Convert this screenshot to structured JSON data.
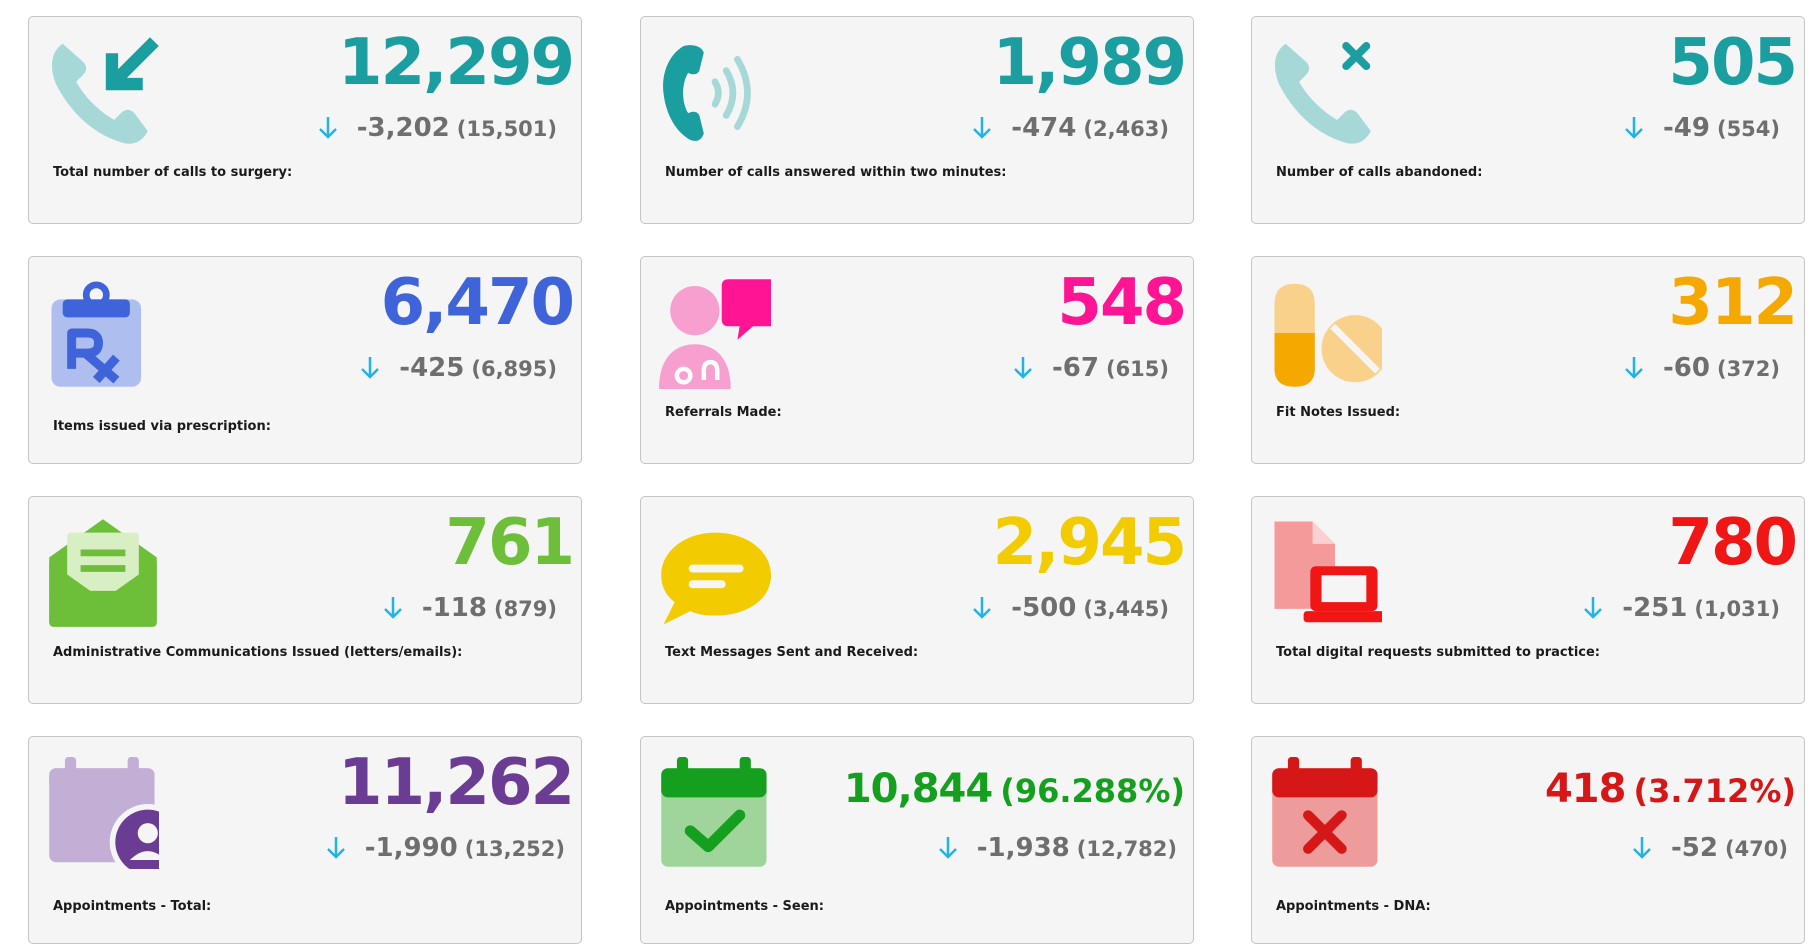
{
  "cards": [
    {
      "value": "12,299",
      "delta": "-3,202",
      "previous": "(15,501)",
      "label": "Total number of calls to surgery:",
      "color": "#1a9e9f"
    },
    {
      "value": "1,989",
      "delta": "-474",
      "previous": "(2,463)",
      "label": "Number of calls answered within two minutes:",
      "color": "#1a9e9f"
    },
    {
      "value": "505",
      "delta": "-49",
      "previous": "(554)",
      "label": "Number of calls abandoned:",
      "color": "#1a9e9f"
    },
    {
      "value": "6,470",
      "delta": "-425",
      "previous": "(6,895)",
      "label": "Items issued via prescription:",
      "color": "#3f63d8"
    },
    {
      "value": "548",
      "delta": "-67",
      "previous": "(615)",
      "label": "Referrals Made:",
      "color": "#ff1493"
    },
    {
      "value": "312",
      "delta": "-60",
      "previous": "(372)",
      "label": "Fit Notes Issued:",
      "color": "#f5a800"
    },
    {
      "value": "761",
      "delta": "-118",
      "previous": "(879)",
      "label": "Administrative Communications Issued (letters/emails):",
      "color": "#6dbf3a"
    },
    {
      "value": "2,945",
      "delta": "-500",
      "previous": "(3,445)",
      "label": "Text Messages Sent and Received:",
      "color": "#f2cc00"
    },
    {
      "value": "780",
      "delta": "-251",
      "previous": "(1,031)",
      "label": "Total digital requests submitted to practice:",
      "color": "#f01616"
    },
    {
      "value": "11,262",
      "delta": "-1,990",
      "previous": "(13,252)",
      "label": "Appointments - Total:",
      "color": "#6b3c93"
    },
    {
      "value": "10,844",
      "percent": "(96.288%)",
      "delta": "-1,938",
      "previous": "(12,782)",
      "label": "Appointments - Seen:",
      "color": "#14a01e"
    },
    {
      "value": "418",
      "percent": "(3.712%)",
      "delta": "-52",
      "previous": "(470)",
      "label": "Appointments - DNA:",
      "color": "#d61717"
    }
  ],
  "icons": [
    "phone-incoming-icon",
    "phone-ringing-icon",
    "phone-missed-icon",
    "prescription-clipboard-icon",
    "doctor-speech-icon",
    "pills-icon",
    "envelope-letter-icon",
    "speech-bubble-icon",
    "digital-request-laptop-icon",
    "calendar-user-icon",
    "calendar-check-icon",
    "calendar-cross-icon"
  ],
  "trend_color": "#1eb4e6"
}
